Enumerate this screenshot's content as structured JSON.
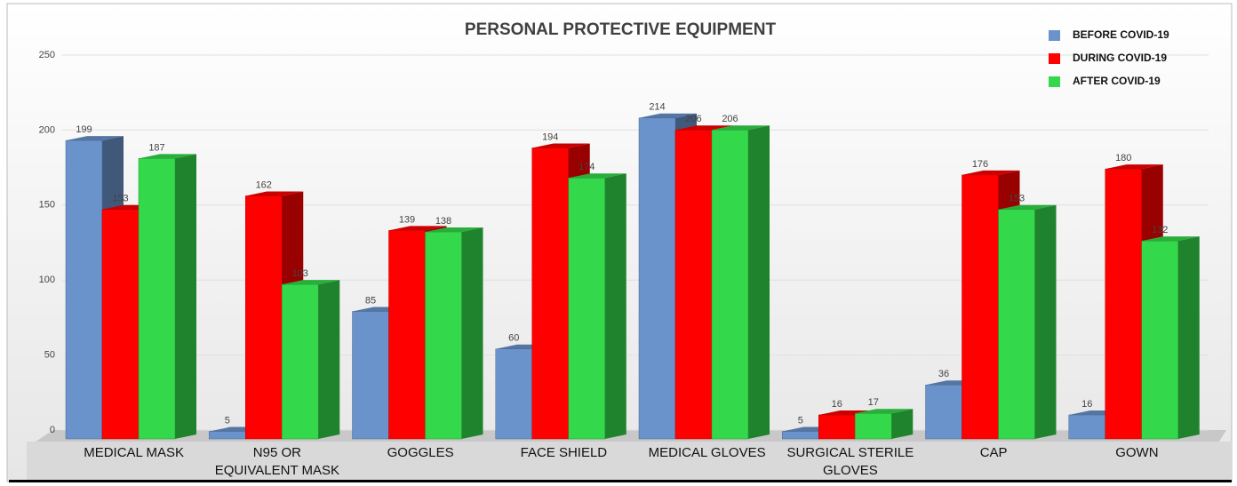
{
  "chart_data": {
    "type": "bar",
    "title": "PERSONAL PROTECTIVE EQUIPMENT",
    "categories": [
      "MEDICAL MASK",
      "N95 OR EQUIVALENT MASK",
      "GOGGLES",
      "FACE SHIELD",
      "MEDICAL GLOVES",
      "SURGICAL STERILE GLOVES",
      "CAP",
      "GOWN"
    ],
    "series": [
      {
        "name": "BEFORE COVID-19",
        "color": "#6a93cc",
        "values": [
          199,
          5,
          85,
          60,
          214,
          5,
          36,
          16
        ]
      },
      {
        "name": "DURING COVID-19",
        "color": "#ff0000",
        "values": [
          153,
          162,
          139,
          194,
          206,
          16,
          176,
          180
        ]
      },
      {
        "name": "AFTER COVID-19",
        "color": "#33d94a",
        "values": [
          187,
          103,
          138,
          174,
          206,
          17,
          153,
          132
        ]
      }
    ],
    "ylim": [
      0,
      250
    ],
    "yticks": [
      0,
      50,
      100,
      150,
      200,
      250
    ],
    "grid": true,
    "legend": "top-right"
  }
}
